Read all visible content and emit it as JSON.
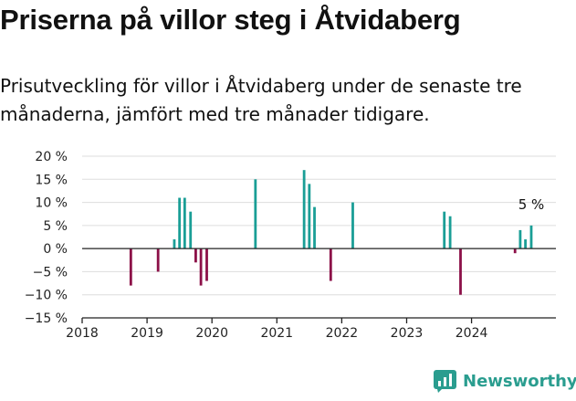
{
  "title": "Priserna på villor steg i Åtvidaberg",
  "subtitle": "Prisutveckling för villor i Åtvidaberg under de senaste tre månaderna, jämfört med tre månader tidigare.",
  "brand": {
    "name": "Newsworthy",
    "icon": "newsworthy-logo-icon",
    "color": "#2a9d8f"
  },
  "colors": {
    "positive": "#1a9e96",
    "negative": "#8c1048",
    "grid": "#dddddd",
    "axis": "#222222"
  },
  "chart_data": {
    "type": "bar",
    "title": "",
    "xlabel": "",
    "ylabel": "",
    "ylim": [
      -15,
      20
    ],
    "yticks": [
      20,
      15,
      10,
      5,
      0,
      -5,
      -10,
      -15
    ],
    "ytick_labels": [
      "20 %",
      "15 %",
      "10 %",
      "5 %",
      "0 %",
      "−5 %",
      "−10 %",
      "−15 %"
    ],
    "xlim": [
      2018,
      2025.3
    ],
    "xticks": [
      2018,
      2019,
      2020,
      2021,
      2022,
      2023,
      2024
    ],
    "xtick_labels": [
      "2018",
      "2019",
      "2020",
      "2021",
      "2022",
      "2023",
      "2024"
    ],
    "grid": true,
    "series": [
      {
        "values": [
          {
            "x": 2018.75,
            "y": -8
          },
          {
            "x": 2019.17,
            "y": -5
          },
          {
            "x": 2019.42,
            "y": 2
          },
          {
            "x": 2019.5,
            "y": 11
          },
          {
            "x": 2019.58,
            "y": 11
          },
          {
            "x": 2019.67,
            "y": 8
          },
          {
            "x": 2019.75,
            "y": -3
          },
          {
            "x": 2019.83,
            "y": -8
          },
          {
            "x": 2019.92,
            "y": -7
          },
          {
            "x": 2020.67,
            "y": 15
          },
          {
            "x": 2021.42,
            "y": 17
          },
          {
            "x": 2021.5,
            "y": 14
          },
          {
            "x": 2021.58,
            "y": 9
          },
          {
            "x": 2021.83,
            "y": -7
          },
          {
            "x": 2022.17,
            "y": 10
          },
          {
            "x": 2023.58,
            "y": 8
          },
          {
            "x": 2023.67,
            "y": 7
          },
          {
            "x": 2023.83,
            "y": -10
          },
          {
            "x": 2024.67,
            "y": -1
          },
          {
            "x": 2024.75,
            "y": 4
          },
          {
            "x": 2024.83,
            "y": 2
          },
          {
            "x": 2024.92,
            "y": 5
          }
        ]
      }
    ],
    "annotation": {
      "text": "5 %",
      "x": 2024.92,
      "y": 5
    }
  }
}
